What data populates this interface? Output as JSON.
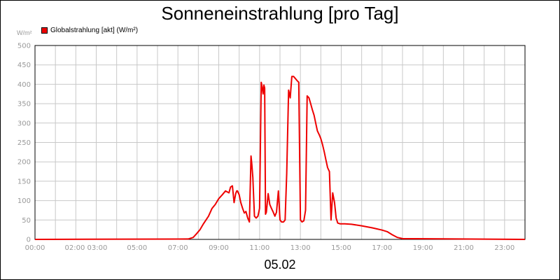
{
  "chart_data": {
    "type": "line",
    "title": "Sonneneinstrahlung [pro Tag]",
    "ylabel": "W/m²",
    "xlabel": "05.02",
    "ylim": [
      0,
      500
    ],
    "xlim": [
      0,
      24
    ],
    "y_ticks": [
      0,
      50,
      100,
      150,
      200,
      250,
      300,
      350,
      400,
      450,
      500
    ],
    "x_ticks": [
      {
        "label": "00:00",
        "x": 0
      },
      {
        "label": "02:00 03:00",
        "x": 2.5
      },
      {
        "label": "05:00",
        "x": 5
      },
      {
        "label": "07:00",
        "x": 7
      },
      {
        "label": "09:00",
        "x": 9
      },
      {
        "label": "11:00",
        "x": 11
      },
      {
        "label": "13:00",
        "x": 13
      },
      {
        "label": "15:00",
        "x": 15
      },
      {
        "label": "17:00",
        "x": 17
      },
      {
        "label": "19:00",
        "x": 19
      },
      {
        "label": "21:00",
        "x": 21
      },
      {
        "label": "23:00",
        "x": 23
      }
    ],
    "grid": true,
    "legend_position": "top-left",
    "series": [
      {
        "name": "Globalstrahlung [akt] (W/m²)",
        "color": "#ee0000",
        "x": [
          0,
          7.5,
          7.75,
          7.92,
          8.08,
          8.25,
          8.5,
          8.67,
          8.83,
          9.0,
          9.17,
          9.33,
          9.5,
          9.58,
          9.67,
          9.75,
          9.83,
          9.88,
          9.92,
          10.0,
          10.08,
          10.17,
          10.25,
          10.33,
          10.42,
          10.5,
          10.58,
          10.62,
          10.67,
          10.75,
          10.83,
          10.92,
          11.0,
          11.08,
          11.12,
          11.17,
          11.21,
          11.25,
          11.29,
          11.33,
          11.42,
          11.5,
          11.58,
          11.67,
          11.75,
          11.83,
          11.92,
          12.0,
          12.08,
          12.17,
          12.25,
          12.33,
          12.42,
          12.5,
          12.58,
          12.67,
          12.75,
          12.83,
          12.92,
          13.0,
          13.08,
          13.17,
          13.25,
          13.33,
          13.42,
          13.5,
          13.58,
          13.67,
          13.75,
          13.83,
          13.92,
          14.0,
          14.08,
          14.17,
          14.25,
          14.33,
          14.42,
          14.5,
          14.58,
          14.67,
          14.75,
          14.83,
          14.9,
          14.95,
          15.0,
          15.08,
          15.17,
          15.5,
          16.0,
          16.5,
          16.75,
          17.0,
          17.25,
          17.5,
          17.75,
          18.0,
          24.0
        ],
        "values": [
          0,
          1,
          5,
          15,
          25,
          40,
          60,
          80,
          90,
          105,
          115,
          125,
          120,
          135,
          138,
          95,
          118,
          125,
          125,
          115,
          95,
          80,
          68,
          72,
          55,
          45,
          215,
          195,
          160,
          60,
          55,
          60,
          80,
          405,
          395,
          375,
          398,
          390,
          65,
          70,
          118,
          90,
          80,
          70,
          60,
          70,
          125,
          50,
          45,
          45,
          50,
          170,
          385,
          365,
          420,
          420,
          415,
          410,
          405,
          50,
          45,
          48,
          75,
          370,
          365,
          350,
          335,
          320,
          300,
          280,
          270,
          260,
          245,
          225,
          205,
          185,
          175,
          50,
          120,
          95,
          55,
          42,
          41,
          40,
          40,
          40,
          40,
          39,
          35,
          30,
          27,
          24,
          20,
          12,
          5,
          2,
          0
        ]
      }
    ]
  }
}
